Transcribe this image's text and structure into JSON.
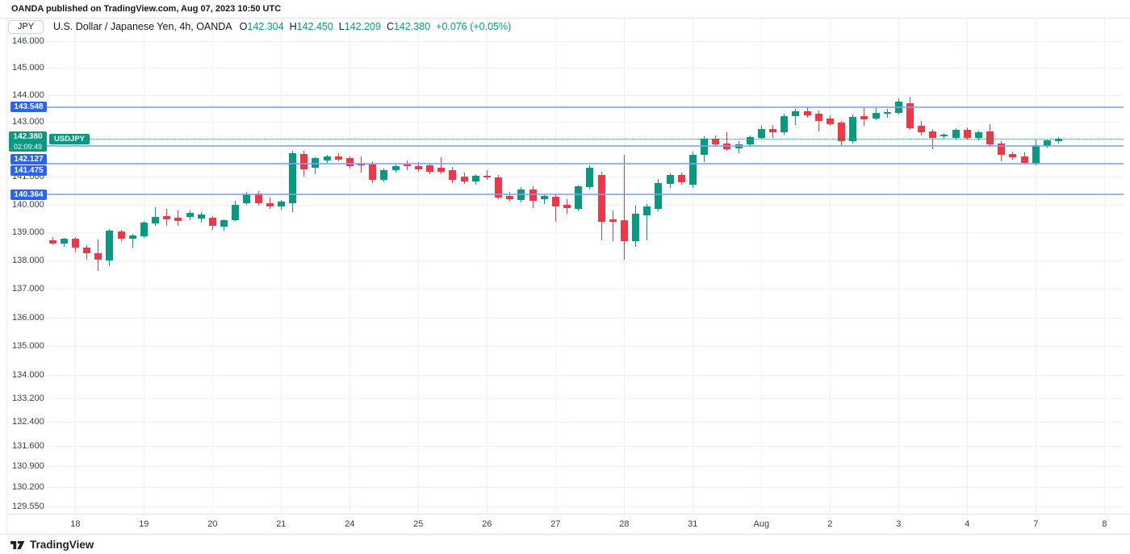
{
  "attribution": "OANDA published on TradingView.com, Aug 07, 2023 10:50 UTC",
  "symbol_bar": {
    "symbol_button": "JPY",
    "title": "U.S. Dollar / Japanese Yen, 4h, OANDA",
    "ohlc": [
      {
        "label": "O",
        "value": "142.304"
      },
      {
        "label": "H",
        "value": "142.450"
      },
      {
        "label": "L",
        "value": "142.209"
      },
      {
        "label": "C",
        "value": "142.380"
      }
    ],
    "change": "+0.076 (+0.05%)"
  },
  "last_price": {
    "label": "142.380",
    "price": 142.38,
    "countdown": "02:09:49",
    "symbol_tag": "USDJPY"
  },
  "alert_lines": [
    {
      "label": "143.548",
      "price": 143.548
    },
    {
      "label": "142.127",
      "price": 142.127
    },
    {
      "label": "141.475",
      "price": 141.475
    },
    {
      "label": "140.364",
      "price": 140.364
    }
  ],
  "footer": {
    "brand": "TradingView"
  },
  "colors": {
    "up": "#089981",
    "down": "#F23645",
    "accent_blue": "#2962FF",
    "alert_line": "#7DA1F5",
    "teal": "#089981",
    "grid": "#EFF2F8",
    "border": "#E0E3EB",
    "text": "#131722",
    "axis_text": "#3A3E4A"
  },
  "chart_data": {
    "type": "candlestick",
    "title": "U.S. Dollar / Japanese Yen, 4h, OANDA",
    "symbol": "USDJPY",
    "timeframe": "4h",
    "exchange": "OANDA",
    "y_scale": "log",
    "visible_price_range": [
      129.55,
      146.0
    ],
    "y_ticks": [
      {
        "label": "146.000",
        "price": 146.0
      },
      {
        "label": "145.000",
        "price": 145.0
      },
      {
        "label": "144.000",
        "price": 144.0
      },
      {
        "label": "143.000",
        "price": 143.0
      },
      {
        "label": "141.000",
        "price": 141.0
      },
      {
        "label": "140.000",
        "price": 140.0
      },
      {
        "label": "139.000",
        "price": 139.0
      },
      {
        "label": "138.000",
        "price": 138.0
      },
      {
        "label": "137.000",
        "price": 137.0
      },
      {
        "label": "136.000",
        "price": 136.0
      },
      {
        "label": "135.000",
        "price": 135.0
      },
      {
        "label": "134.000",
        "price": 134.0
      },
      {
        "label": "133.200",
        "price": 133.2
      },
      {
        "label": "132.400",
        "price": 132.4
      },
      {
        "label": "131.600",
        "price": 131.6
      },
      {
        "label": "130.900",
        "price": 130.9
      },
      {
        "label": "130.200",
        "price": 130.2
      },
      {
        "label": "129.550",
        "price": 129.55
      }
    ],
    "x_ticks": [
      {
        "label": "18",
        "candle": 2
      },
      {
        "label": "19",
        "candle": 8
      },
      {
        "label": "20",
        "candle": 14
      },
      {
        "label": "21",
        "candle": 20
      },
      {
        "label": "24",
        "candle": 26
      },
      {
        "label": "25",
        "candle": 32
      },
      {
        "label": "26",
        "candle": 38
      },
      {
        "label": "27",
        "candle": 44
      },
      {
        "label": "28",
        "candle": 50
      },
      {
        "label": "31",
        "candle": 56
      },
      {
        "label": "Aug",
        "candle": 62
      },
      {
        "label": "2",
        "candle": 68
      },
      {
        "label": "3",
        "candle": 74
      },
      {
        "label": "4",
        "candle": 80
      },
      {
        "label": "7",
        "candle": 86
      },
      {
        "label": "8",
        "candle": 92
      }
    ],
    "horizontal_lines": [
      143.548,
      142.127,
      141.475,
      140.364
    ],
    "last_price": 142.38,
    "candles": [
      [
        138.72,
        138.85,
        138.55,
        138.6
      ],
      [
        138.6,
        138.82,
        138.5,
        138.77
      ],
      [
        138.77,
        138.83,
        138.3,
        138.47
      ],
      [
        138.47,
        138.55,
        138.03,
        138.25
      ],
      [
        138.27,
        138.74,
        137.63,
        138.04
      ],
      [
        138.0,
        139.12,
        137.79,
        139.08
      ],
      [
        139.03,
        139.1,
        138.68,
        138.79
      ],
      [
        138.77,
        138.95,
        138.46,
        138.9
      ],
      [
        138.88,
        139.4,
        138.8,
        139.37
      ],
      [
        139.32,
        139.9,
        139.25,
        139.56
      ],
      [
        139.6,
        139.85,
        139.23,
        139.48
      ],
      [
        139.52,
        139.8,
        139.25,
        139.42
      ],
      [
        139.56,
        139.8,
        139.45,
        139.7
      ],
      [
        139.5,
        139.72,
        139.35,
        139.65
      ],
      [
        139.52,
        139.6,
        139.1,
        139.24
      ],
      [
        139.2,
        139.48,
        139.08,
        139.43
      ],
      [
        139.43,
        140.14,
        139.4,
        140.0
      ],
      [
        140.05,
        140.45,
        139.98,
        140.38
      ],
      [
        140.4,
        140.48,
        139.95,
        140.05
      ],
      [
        140.05,
        140.25,
        139.85,
        139.95
      ],
      [
        139.93,
        140.18,
        139.82,
        140.12
      ],
      [
        140.05,
        141.95,
        139.72,
        141.86
      ],
      [
        141.84,
        141.95,
        141.0,
        141.28
      ],
      [
        141.33,
        141.72,
        141.1,
        141.67
      ],
      [
        141.6,
        141.8,
        141.5,
        141.73
      ],
      [
        141.75,
        141.85,
        141.55,
        141.62
      ],
      [
        141.67,
        141.75,
        141.3,
        141.38
      ],
      [
        141.48,
        141.75,
        141.15,
        141.42
      ],
      [
        141.45,
        141.55,
        140.77,
        140.9
      ],
      [
        140.9,
        141.3,
        140.8,
        141.24
      ],
      [
        141.24,
        141.45,
        141.15,
        141.38
      ],
      [
        141.45,
        141.6,
        141.25,
        141.4
      ],
      [
        141.4,
        141.55,
        141.2,
        141.28
      ],
      [
        141.43,
        141.52,
        141.1,
        141.19
      ],
      [
        141.33,
        141.72,
        141.1,
        141.18
      ],
      [
        141.24,
        141.35,
        140.78,
        140.9
      ],
      [
        141.0,
        141.15,
        140.75,
        140.83
      ],
      [
        140.83,
        141.1,
        140.72,
        141.05
      ],
      [
        141.05,
        141.24,
        140.9,
        140.98
      ],
      [
        140.99,
        141.08,
        140.18,
        140.24
      ],
      [
        140.32,
        140.45,
        140.1,
        140.19
      ],
      [
        140.15,
        140.62,
        140.08,
        140.55
      ],
      [
        140.55,
        140.65,
        139.88,
        140.13
      ],
      [
        140.19,
        140.4,
        140.02,
        140.32
      ],
      [
        140.29,
        140.4,
        139.39,
        139.94
      ],
      [
        140.0,
        140.19,
        139.66,
        139.88
      ],
      [
        139.84,
        140.7,
        139.75,
        140.65
      ],
      [
        140.63,
        141.42,
        140.55,
        141.33
      ],
      [
        141.07,
        141.2,
        138.71,
        139.39
      ],
      [
        139.48,
        139.79,
        138.68,
        139.37
      ],
      [
        139.43,
        141.81,
        138.02,
        138.68
      ],
      [
        138.68,
        139.95,
        138.48,
        139.66
      ],
      [
        139.62,
        140.02,
        138.73,
        139.92
      ],
      [
        139.86,
        140.93,
        139.76,
        140.78
      ],
      [
        140.75,
        141.12,
        140.61,
        141.07
      ],
      [
        141.07,
        141.15,
        140.72,
        140.81
      ],
      [
        140.71,
        141.93,
        140.61,
        141.81
      ],
      [
        141.79,
        142.48,
        141.53,
        142.4
      ],
      [
        142.38,
        142.52,
        142.1,
        142.19
      ],
      [
        142.21,
        142.62,
        141.95,
        142.01
      ],
      [
        142.03,
        142.3,
        141.87,
        142.19
      ],
      [
        142.17,
        142.52,
        142.1,
        142.46
      ],
      [
        142.43,
        142.86,
        142.35,
        142.73
      ],
      [
        142.73,
        142.89,
        142.43,
        142.62
      ],
      [
        142.62,
        143.32,
        142.55,
        143.22
      ],
      [
        143.22,
        143.48,
        142.9,
        143.4
      ],
      [
        143.4,
        143.57,
        143.15,
        143.25
      ],
      [
        143.32,
        143.42,
        142.66,
        143.04
      ],
      [
        143.12,
        143.25,
        142.85,
        142.93
      ],
      [
        142.97,
        143.05,
        142.11,
        142.3
      ],
      [
        142.3,
        143.28,
        142.22,
        143.2
      ],
      [
        143.21,
        143.5,
        142.85,
        143.1
      ],
      [
        143.14,
        143.52,
        143.05,
        143.35
      ],
      [
        143.3,
        143.48,
        143.15,
        143.38
      ],
      [
        143.35,
        143.87,
        143.28,
        143.75
      ],
      [
        143.7,
        143.92,
        142.7,
        142.77
      ],
      [
        142.85,
        143.05,
        142.5,
        142.62
      ],
      [
        142.65,
        142.75,
        142.0,
        142.43
      ],
      [
        142.48,
        142.6,
        142.35,
        142.53
      ],
      [
        142.42,
        142.78,
        142.35,
        142.71
      ],
      [
        142.7,
        142.8,
        142.35,
        142.42
      ],
      [
        142.42,
        142.68,
        142.32,
        142.62
      ],
      [
        142.65,
        142.92,
        142.1,
        142.17
      ],
      [
        142.2,
        142.3,
        141.58,
        141.8
      ],
      [
        141.82,
        141.92,
        141.62,
        141.71
      ],
      [
        141.75,
        141.88,
        141.45,
        141.5
      ],
      [
        141.49,
        142.36,
        141.42,
        142.15
      ],
      [
        142.14,
        142.38,
        142.05,
        142.33
      ],
      [
        142.304,
        142.45,
        142.209,
        142.38
      ]
    ]
  }
}
